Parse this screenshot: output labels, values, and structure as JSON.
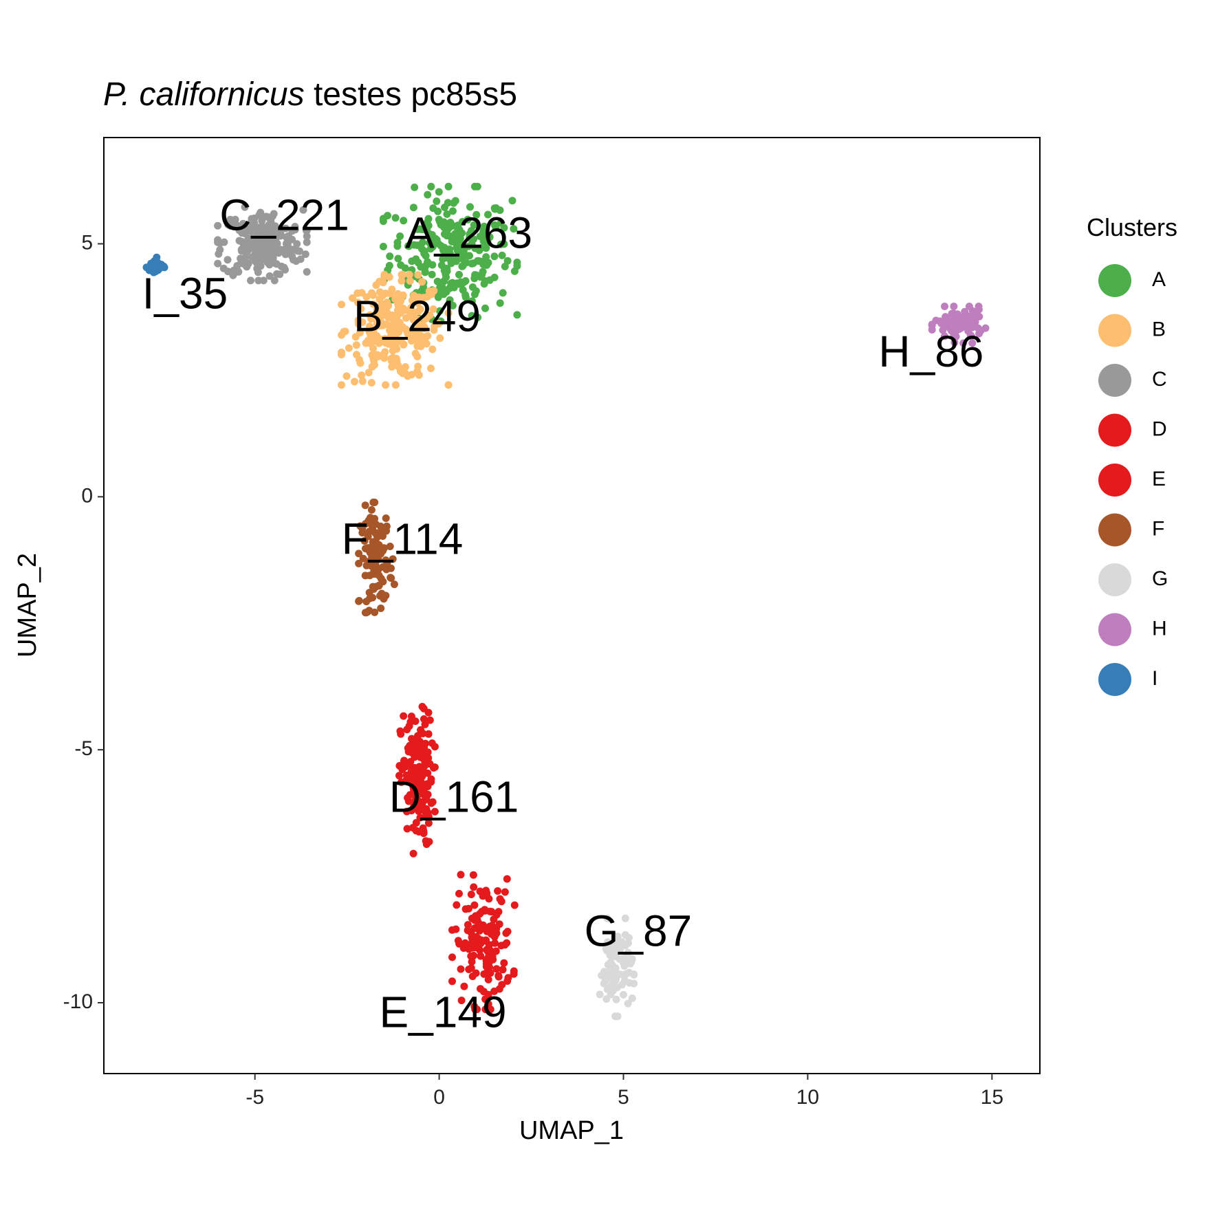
{
  "chart_data": {
    "type": "scatter",
    "title": {
      "italic": "P. californicus",
      "rest": "testes pc85s5"
    },
    "xlabel": "UMAP_1",
    "ylabel": "UMAP_2",
    "xlim": [
      -9.1,
      16.3
    ],
    "ylim": [
      -11.4,
      7.1
    ],
    "xticks": [
      -5,
      0,
      5,
      10,
      15
    ],
    "yticks": [
      -10,
      -5,
      0,
      5
    ],
    "grid": false,
    "legend": {
      "title": "Clusters",
      "position": "right",
      "items": [
        {
          "name": "A",
          "color": "#4DAF4A"
        },
        {
          "name": "B",
          "color": "#FDBF6F"
        },
        {
          "name": "C",
          "color": "#999999"
        },
        {
          "name": "D",
          "color": "#E41A1C"
        },
        {
          "name": "E",
          "color": "#E41A1C"
        },
        {
          "name": "F",
          "color": "#A65628"
        },
        {
          "name": "G",
          "color": "#D9D9D9"
        },
        {
          "name": "H",
          "color": "#BF7FBF"
        },
        {
          "name": "I",
          "color": "#377EB8"
        }
      ]
    },
    "annotations": [
      {
        "text": "A_263",
        "x": 0.8,
        "y": 5.15
      },
      {
        "text": "B_249",
        "x": -0.6,
        "y": 3.5
      },
      {
        "text": "C_221",
        "x": -4.2,
        "y": 5.5
      },
      {
        "text": "D_161",
        "x": 0.4,
        "y": -6.0
      },
      {
        "text": "E_149",
        "x": 0.1,
        "y": -10.25
      },
      {
        "text": "F_114",
        "x": -1.0,
        "y": -0.9
      },
      {
        "text": "G_87",
        "x": 5.4,
        "y": -8.65
      },
      {
        "text": "H_86",
        "x": 13.35,
        "y": 2.8
      },
      {
        "text": "I_35",
        "x": -6.9,
        "y": 3.95
      }
    ],
    "clusters": [
      {
        "name": "A",
        "color": "#4DAF4A",
        "n": 263,
        "center": [
          0.3,
          4.8
        ],
        "spread": [
          1.5,
          1.1
        ]
      },
      {
        "name": "B",
        "color": "#FDBF6F",
        "n": 249,
        "center": [
          -1.2,
          3.3
        ],
        "spread": [
          1.2,
          0.9
        ]
      },
      {
        "name": "C",
        "color": "#999999",
        "n": 221,
        "center": [
          -4.8,
          5.0
        ],
        "spread": [
          1.0,
          0.6
        ]
      },
      {
        "name": "D",
        "color": "#E41A1C",
        "n": 161,
        "center": [
          -0.6,
          -5.6
        ],
        "spread": [
          0.4,
          1.2
        ]
      },
      {
        "name": "E",
        "color": "#E41A1C",
        "n": 149,
        "center": [
          1.2,
          -8.8
        ],
        "spread": [
          0.7,
          1.1
        ]
      },
      {
        "name": "F",
        "color": "#A65628",
        "n": 114,
        "center": [
          -1.7,
          -1.2
        ],
        "spread": [
          0.4,
          0.9
        ]
      },
      {
        "name": "G",
        "color": "#D9D9D9",
        "n": 87,
        "center": [
          4.8,
          -9.3
        ],
        "spread": [
          0.4,
          0.8
        ]
      },
      {
        "name": "H",
        "color": "#BF7FBF",
        "n": 86,
        "center": [
          14.1,
          3.4
        ],
        "spread": [
          0.6,
          0.3
        ]
      },
      {
        "name": "I",
        "color": "#377EB8",
        "n": 35,
        "center": [
          -7.7,
          4.55
        ],
        "spread": [
          0.2,
          0.15
        ]
      }
    ]
  }
}
